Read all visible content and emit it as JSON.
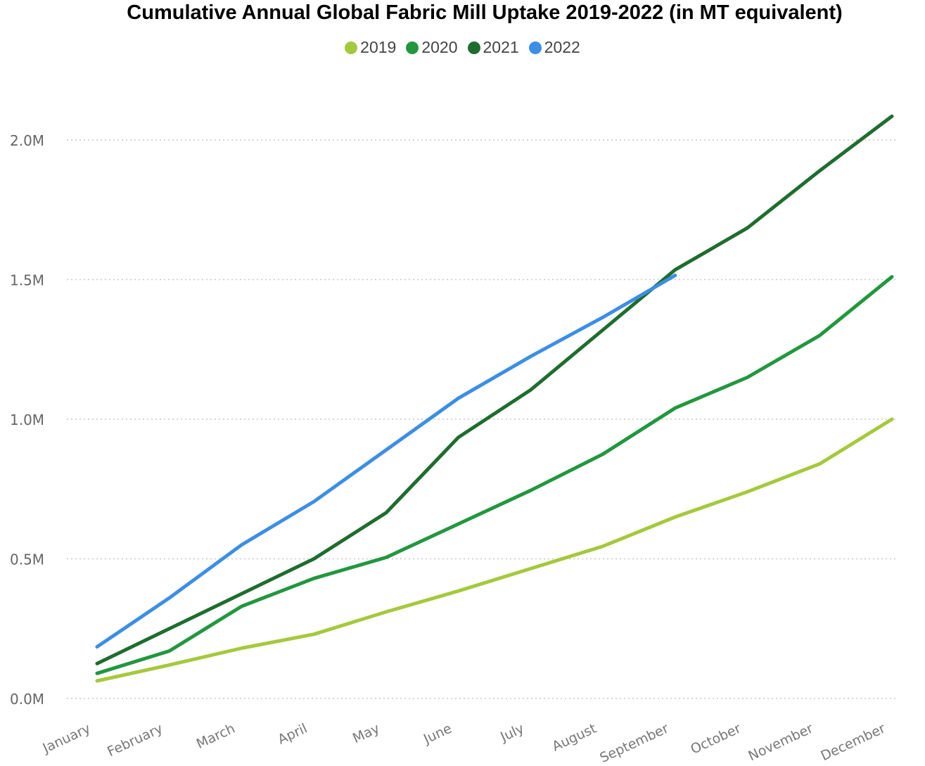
{
  "chart_data": {
    "type": "line",
    "title": "Cumulative Annual Global Fabric Mill Uptake 2019-2022 (in MT equivalent)",
    "xlabel": "",
    "ylabel": "",
    "categories": [
      "January",
      "February",
      "March",
      "April",
      "May",
      "June",
      "July",
      "August",
      "September",
      "October",
      "November",
      "December"
    ],
    "y_ticks": [
      "0.0M",
      "0.5M",
      "1.0M",
      "1.5M",
      "2.0M"
    ],
    "y_tick_values": [
      0,
      500000,
      1000000,
      1500000,
      2000000
    ],
    "ylim": [
      0,
      2100000
    ],
    "grid": "horizontal dotted",
    "legend_position": "top-center",
    "series": [
      {
        "name": "2019",
        "color": "#a5c93c",
        "values": [
          63000,
          120000,
          180000,
          230000,
          310000,
          385000,
          465000,
          545000,
          650000,
          740000,
          840000,
          1000000
        ]
      },
      {
        "name": "2020",
        "color": "#22973e",
        "values": [
          90000,
          170000,
          330000,
          430000,
          505000,
          625000,
          745000,
          875000,
          1040000,
          1150000,
          1300000,
          1510000
        ]
      },
      {
        "name": "2021",
        "color": "#1e6d2e",
        "values": [
          125000,
          250000,
          375000,
          500000,
          665000,
          935000,
          1105000,
          1320000,
          1535000,
          1685000,
          1890000,
          2085000
        ]
      },
      {
        "name": "2022",
        "color": "#3c8ee6",
        "values": [
          185000,
          360000,
          550000,
          705000,
          890000,
          1075000,
          1225000,
          1365000,
          1515000,
          null,
          null,
          null
        ]
      }
    ]
  }
}
